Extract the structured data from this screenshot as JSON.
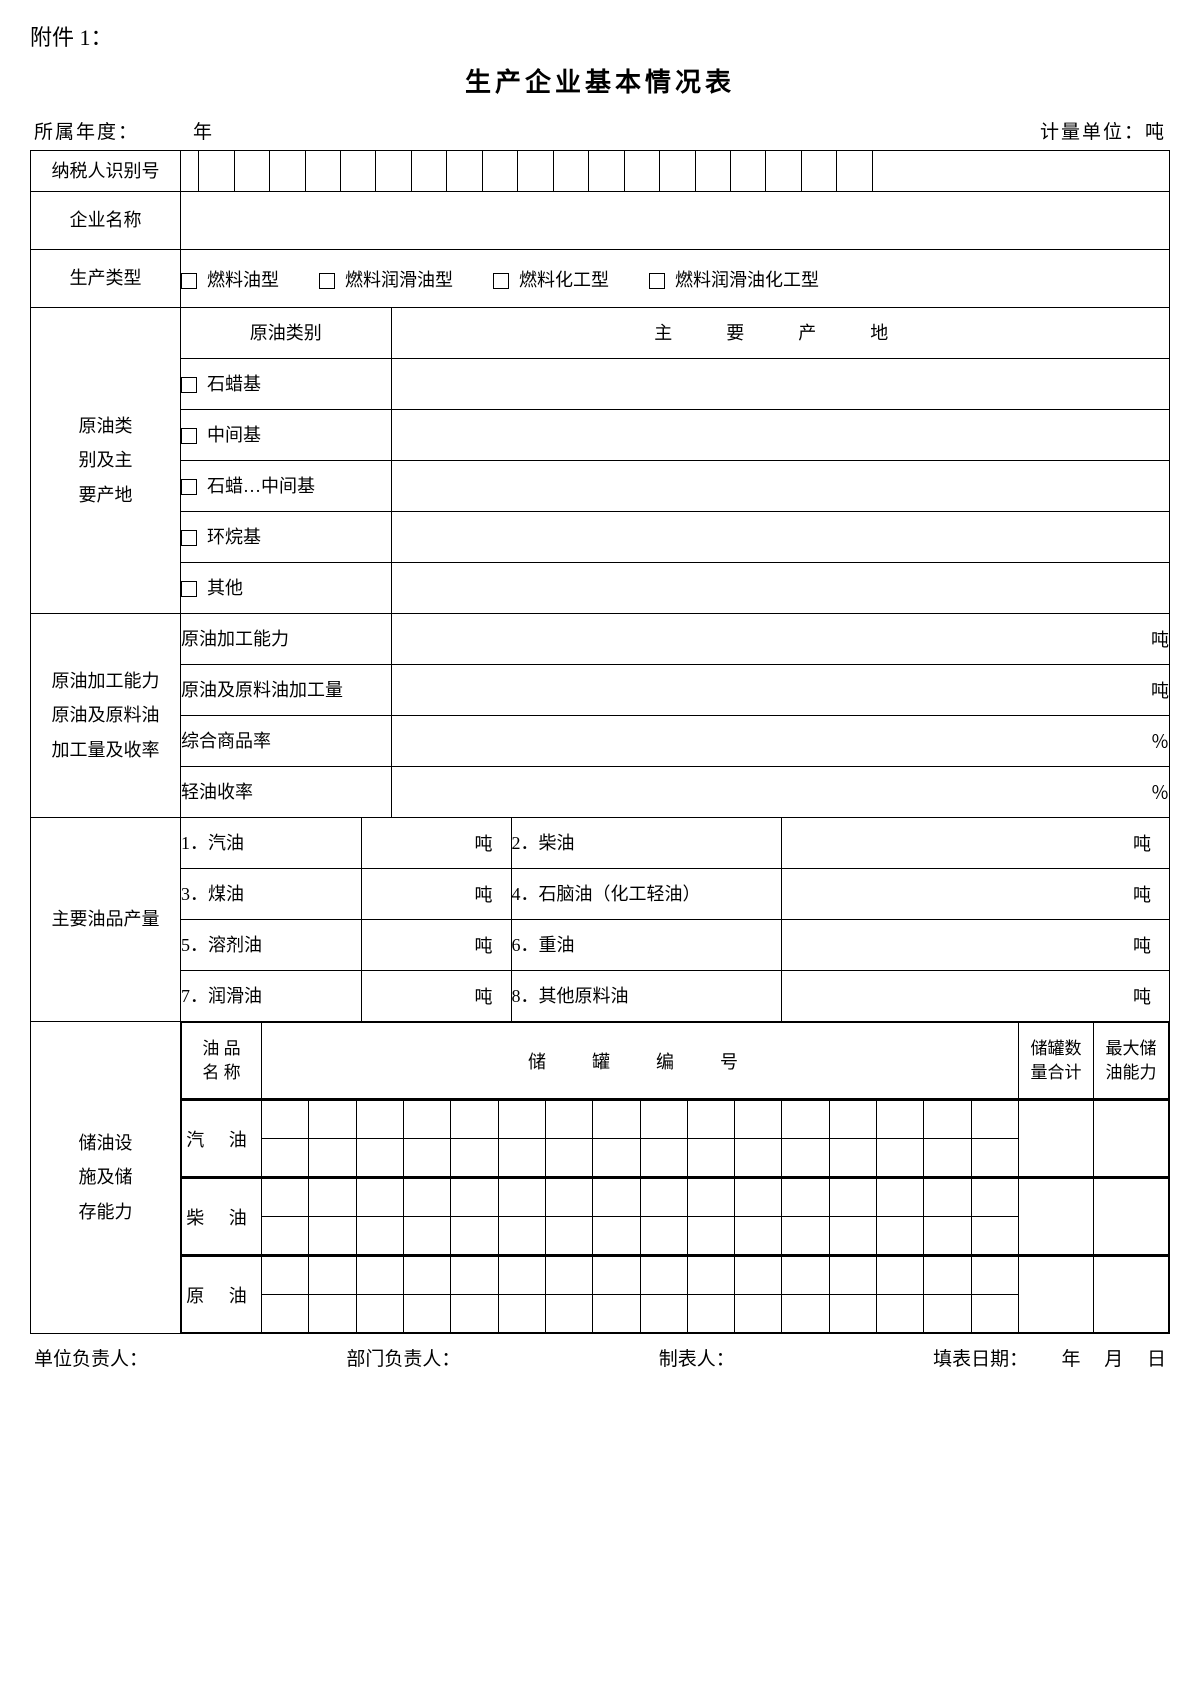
{
  "attachment": "附件 1：",
  "title": "生产企业基本情况表",
  "header": {
    "year_prefix": "所属年度：",
    "year_suffix": "年",
    "unit_label": "计量单位：吨"
  },
  "rows": {
    "taxpayer_id": "纳税人识别号",
    "enterprise_name": "企业名称",
    "prod_type_label": "生产类型",
    "prod_types": [
      "燃料油型",
      "燃料润滑油型",
      "燃料化工型",
      "燃料润滑油化工型"
    ],
    "crude_section": {
      "label": "原油类\n别及主\n要产地",
      "col1": "原油类别",
      "col2": "主　要　产　地",
      "items": [
        "石蜡基",
        "中间基",
        "石蜡…中间基",
        "环烷基",
        "其他"
      ]
    },
    "capacity_section": {
      "label": "原油加工能力\n原油及原料油\n加工量及收率",
      "items": [
        {
          "name": "原油加工能力",
          "unit": "吨"
        },
        {
          "name": "原油及原料油加工量",
          "unit": "吨"
        },
        {
          "name": "综合商品率",
          "unit": "％"
        },
        {
          "name": "轻油收率",
          "unit": "％"
        }
      ]
    },
    "product_section": {
      "label": "主要油品产量",
      "items": [
        {
          "left": "1．汽油",
          "right": "2．柴油",
          "unit": "吨"
        },
        {
          "left": "3．煤油",
          "right": "4．石脑油（化工轻油）",
          "unit": "吨"
        },
        {
          "left": "5．溶剂油",
          "right": "6．重油",
          "unit": "吨"
        },
        {
          "left": "7．润滑油",
          "right": "8．其他原料油",
          "unit": "吨"
        }
      ]
    },
    "storage_section": {
      "label": "储油设\n施及储\n存能力",
      "oil_name_header": "油 品\n名 称",
      "tank_number_header": "储　罐　编　号",
      "tank_count_header": "储罐数\n量合计",
      "max_capacity_header": "最大储\n油能力",
      "oils": [
        "汽 油",
        "柴 油",
        "原 油"
      ]
    }
  },
  "footer": {
    "unit_head": "单位负责人：",
    "dept_head": "部门负责人：",
    "preparer": "制表人：",
    "date_label": "填表日期：",
    "date_y": "年",
    "date_m": "月",
    "date_d": "日"
  },
  "style": {
    "grid_cells_taxpayer": 20,
    "grid_cells_tank": 16
  }
}
